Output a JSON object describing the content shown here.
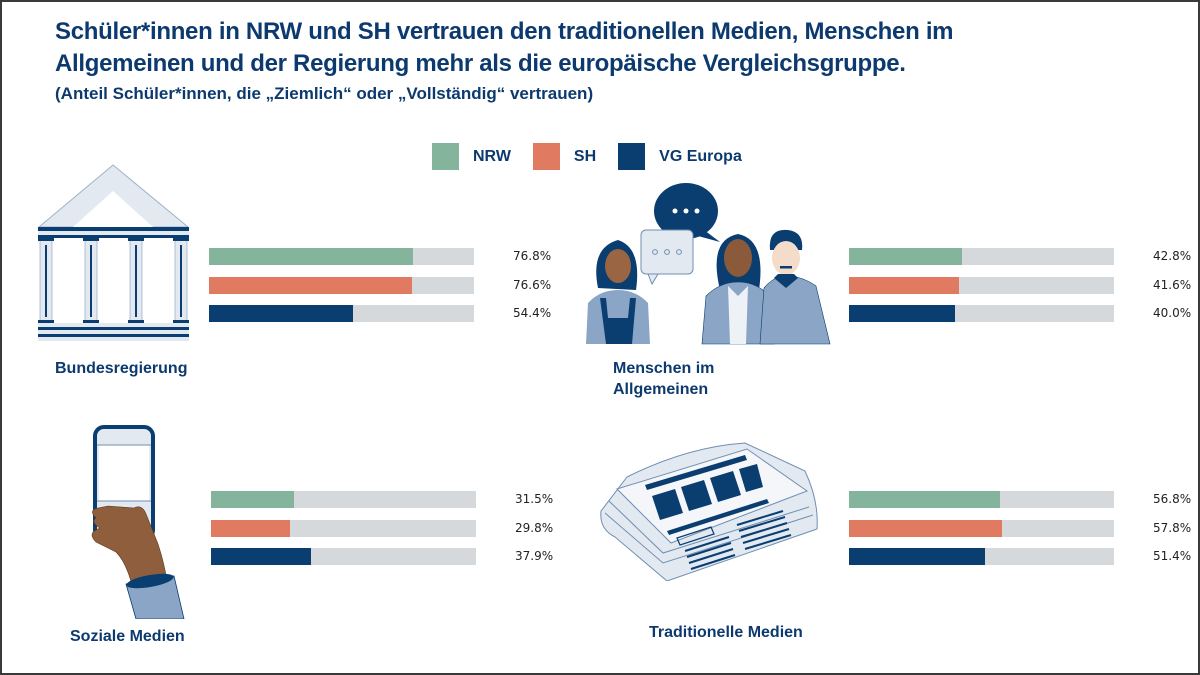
{
  "title_line1": "Schüler*innen in NRW und SH vertrauen den traditionellen Medien, Menschen im",
  "title_line2": "Allgemeinen und der Regierung mehr als die europäische Vergleichsgruppe.",
  "subtitle": "(Anteil Schüler*innen, die „Ziemlich“ oder „Vollständig“ vertrauen)",
  "colors": {
    "NRW": "#84b59c",
    "SH": "#e07a60",
    "VG Europa": "#0a3d70",
    "track": "#d5d9db"
  },
  "illustrations": {
    "bundesregierung": "government-building-icon",
    "menschen": "people-talking-icon",
    "soziale_medien": "smartphone-hand-icon",
    "traditionelle_medien": "newspaper-icon"
  },
  "chart_data": {
    "type": "bar",
    "orientation": "horizontal",
    "title": "Schüler*innen in NRW und SH vertrauen den traditionellen Medien, Menschen im Allgemeinen und der Regierung mehr als die europäische Vergleichsgruppe.",
    "subtitle": "(Anteil Schüler*innen, die „Ziemlich“ oder „Vollständig“ vertrauen)",
    "xlabel": "",
    "ylabel": "",
    "xlim": [
      0,
      100
    ],
    "unit": "%",
    "legend": {
      "position": "top-center",
      "entries": [
        "NRW",
        "SH",
        "VG Europa"
      ]
    },
    "categories": [
      "Bundesregierung",
      "Menschen im Allgemeinen",
      "Soziale Medien",
      "Traditionelle Medien"
    ],
    "series": [
      {
        "name": "NRW",
        "values": [
          76.8,
          42.8,
          31.5,
          56.8
        ]
      },
      {
        "name": "SH",
        "values": [
          76.6,
          41.6,
          29.8,
          57.8
        ]
      },
      {
        "name": "VG Europa",
        "values": [
          54.4,
          40.0,
          37.9,
          51.4
        ]
      }
    ],
    "value_labels": [
      [
        "76.8%",
        "76.6%",
        "54.4%"
      ],
      [
        "42.8%",
        "41.6%",
        "40.0%"
      ],
      [
        "31.5%",
        "29.8%",
        "37.9%"
      ],
      [
        "56.8%",
        "57.8%",
        "51.4%"
      ]
    ],
    "category_labels": [
      [
        "Bundesregierung"
      ],
      [
        "Menschen im",
        "Allgemeinen"
      ],
      [
        "Soziale Medien"
      ],
      [
        "Traditionelle Medien"
      ]
    ]
  }
}
